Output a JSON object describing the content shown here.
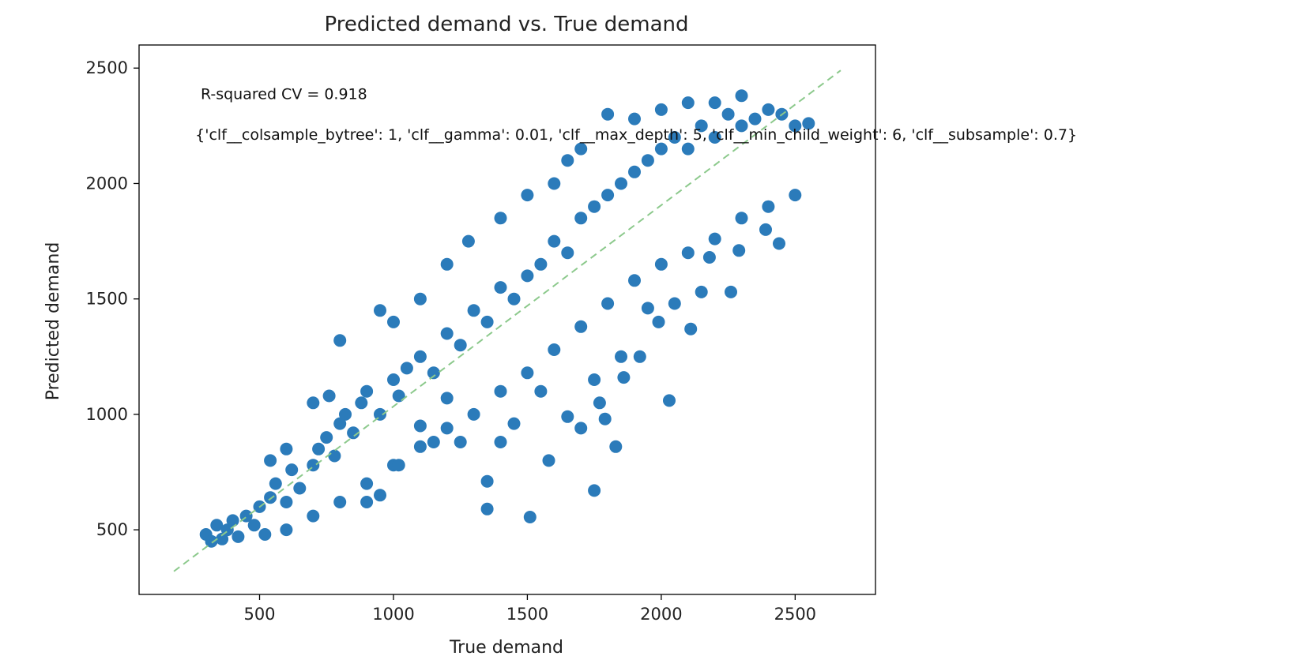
{
  "chart_data": {
    "type": "scatter",
    "title": "Predicted demand vs. True demand",
    "xlabel": "True demand",
    "ylabel": "Predicted demand",
    "xlim": [
      50,
      2800
    ],
    "ylim": [
      220,
      2600
    ],
    "xticks": [
      500,
      1000,
      1500,
      2000,
      2500
    ],
    "yticks": [
      500,
      1000,
      1500,
      2000,
      2500
    ],
    "grid": false,
    "colors": {
      "points": "#2b7bba",
      "reference_line": "#8cc98c"
    },
    "annotations": [
      {
        "text": "R-squared CV = 0.918",
        "x": 280,
        "y": 2365
      },
      {
        "text": "{'clf__colsample_bytree': 1, 'clf__gamma': 0.01, 'clf__max_depth': 5, 'clf__min_child_weight': 6, 'clf__subsample': 0.7}",
        "x": 260,
        "y": 2190
      }
    ],
    "reference_line": {
      "style": "dashed",
      "from": [
        180,
        320
      ],
      "to": [
        2670,
        2490
      ]
    },
    "series": [
      {
        "points": [
          [
            300,
            480
          ],
          [
            320,
            450
          ],
          [
            340,
            520
          ],
          [
            360,
            460
          ],
          [
            380,
            500
          ],
          [
            400,
            540
          ],
          [
            420,
            470
          ],
          [
            450,
            560
          ],
          [
            480,
            520
          ],
          [
            500,
            600
          ],
          [
            520,
            480
          ],
          [
            540,
            640
          ],
          [
            560,
            700
          ],
          [
            600,
            620
          ],
          [
            620,
            760
          ],
          [
            650,
            680
          ],
          [
            700,
            780
          ],
          [
            720,
            850
          ],
          [
            750,
            900
          ],
          [
            780,
            820
          ],
          [
            800,
            960
          ],
          [
            820,
            1000
          ],
          [
            850,
            920
          ],
          [
            880,
            1050
          ],
          [
            900,
            1100
          ],
          [
            950,
            1000
          ],
          [
            1000,
            1150
          ],
          [
            1020,
            1080
          ],
          [
            1050,
            1200
          ],
          [
            1100,
            1250
          ],
          [
            1150,
            1180
          ],
          [
            1200,
            1350
          ],
          [
            1250,
            1300
          ],
          [
            1300,
            1450
          ],
          [
            1350,
            1400
          ],
          [
            1400,
            1550
          ],
          [
            1450,
            1500
          ],
          [
            1500,
            1600
          ],
          [
            1550,
            1650
          ],
          [
            1600,
            1750
          ],
          [
            1650,
            1700
          ],
          [
            1700,
            1850
          ],
          [
            1750,
            1900
          ],
          [
            1800,
            1950
          ],
          [
            1850,
            2000
          ],
          [
            1900,
            2050
          ],
          [
            1950,
            2100
          ],
          [
            2000,
            2150
          ],
          [
            2050,
            2200
          ],
          [
            2100,
            2150
          ],
          [
            2150,
            2250
          ],
          [
            2200,
            2200
          ],
          [
            2250,
            2300
          ],
          [
            2300,
            2250
          ],
          [
            2350,
            2280
          ],
          [
            2400,
            2320
          ],
          [
            2450,
            2300
          ],
          [
            2500,
            2250
          ],
          [
            2550,
            2260
          ],
          [
            540,
            800
          ],
          [
            600,
            850
          ],
          [
            700,
            1050
          ],
          [
            760,
            1080
          ],
          [
            800,
            1320
          ],
          [
            950,
            1450
          ],
          [
            1000,
            1400
          ],
          [
            1100,
            1500
          ],
          [
            1200,
            1650
          ],
          [
            1280,
            1750
          ],
          [
            1400,
            1850
          ],
          [
            1500,
            1950
          ],
          [
            1600,
            2000
          ],
          [
            1650,
            2100
          ],
          [
            1700,
            2150
          ],
          [
            1800,
            2300
          ],
          [
            1900,
            2280
          ],
          [
            2000,
            2320
          ],
          [
            2100,
            2350
          ],
          [
            2200,
            2350
          ],
          [
            2300,
            2380
          ],
          [
            600,
            500
          ],
          [
            700,
            560
          ],
          [
            800,
            620
          ],
          [
            900,
            700
          ],
          [
            1000,
            780
          ],
          [
            1100,
            860
          ],
          [
            1200,
            940
          ],
          [
            1300,
            1000
          ],
          [
            1400,
            1100
          ],
          [
            1500,
            1180
          ],
          [
            1600,
            1280
          ],
          [
            1700,
            1380
          ],
          [
            1800,
            1480
          ],
          [
            1900,
            1580
          ],
          [
            2000,
            1650
          ],
          [
            2100,
            1700
          ],
          [
            2200,
            1760
          ],
          [
            2300,
            1850
          ],
          [
            2400,
            1900
          ],
          [
            2500,
            1950
          ],
          [
            1350,
            710
          ],
          [
            1350,
            590
          ],
          [
            1580,
            800
          ],
          [
            1510,
            555
          ],
          [
            1750,
            670
          ],
          [
            1830,
            860
          ],
          [
            2030,
            1060
          ],
          [
            1770,
            1050
          ],
          [
            1790,
            980
          ],
          [
            1860,
            1160
          ],
          [
            1920,
            1250
          ],
          [
            1990,
            1400
          ],
          [
            2110,
            1370
          ],
          [
            2260,
            1530
          ],
          [
            2440,
            1740
          ],
          [
            2290,
            1710
          ],
          [
            2390,
            1800
          ],
          [
            2180,
            1680
          ],
          [
            2050,
            1480
          ],
          [
            2150,
            1530
          ],
          [
            1950,
            1460
          ],
          [
            1650,
            990
          ],
          [
            1700,
            940
          ],
          [
            1750,
            1150
          ],
          [
            1850,
            1250
          ],
          [
            1200,
            1070
          ],
          [
            1100,
            950
          ],
          [
            1020,
            780
          ],
          [
            900,
            620
          ],
          [
            950,
            650
          ],
          [
            1150,
            880
          ],
          [
            1250,
            880
          ],
          [
            1450,
            960
          ],
          [
            1550,
            1100
          ],
          [
            1400,
            880
          ]
        ]
      }
    ]
  }
}
